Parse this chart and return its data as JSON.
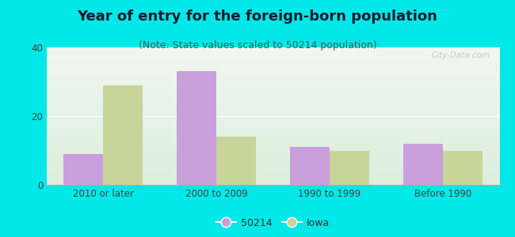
{
  "title": "Year of entry for the foreign-born population",
  "subtitle": "(Note: State values scaled to 50214 population)",
  "categories": [
    "2010 or later",
    "2000 to 2009",
    "1990 to 1999",
    "Before 1990"
  ],
  "values_50214": [
    9,
    33,
    11,
    12
  ],
  "values_iowa": [
    29,
    14,
    10,
    10
  ],
  "color_50214": "#c9a0dc",
  "color_iowa": "#c8d49a",
  "background_outer": "#00e8e8",
  "background_inner_top": "#ddeedd",
  "background_inner_bottom": "#f0f8f0",
  "ylim": [
    0,
    40
  ],
  "yticks": [
    0,
    20,
    40
  ],
  "bar_width": 0.35,
  "legend_label_50214": "50214",
  "legend_label_iowa": "Iowa",
  "watermark": "City-Data.com",
  "title_fontsize": 13,
  "subtitle_fontsize": 9
}
